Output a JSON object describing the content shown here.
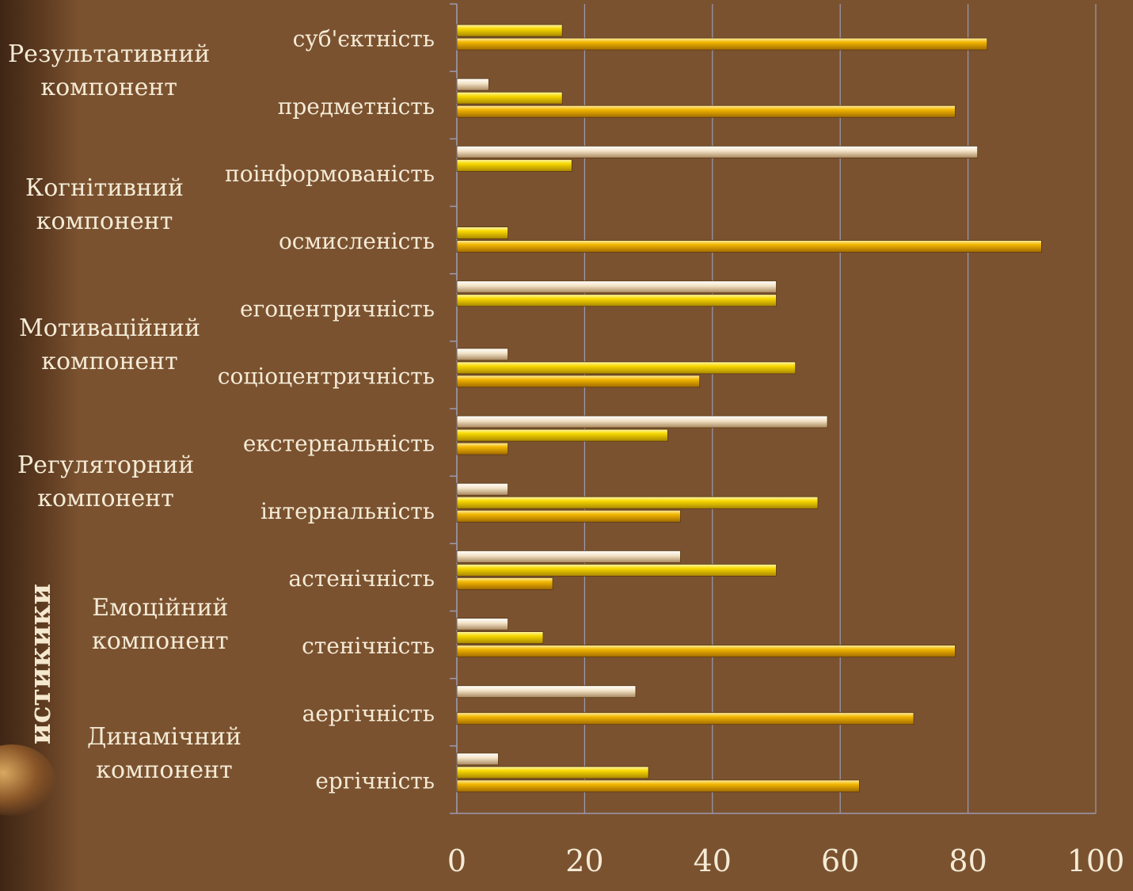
{
  "side_title": "истикики",
  "groups": [
    {
      "line1": "Результативний",
      "line2": "компонент"
    },
    {
      "line1": "Когнітивний",
      "line2": "компонент"
    },
    {
      "line1": "Мотиваційний",
      "line2": "компонент"
    },
    {
      "line1": "Регуляторний",
      "line2": "компонент"
    },
    {
      "line1": "Емоційний",
      "line2": "компонент"
    },
    {
      "line1": "Динамічний",
      "line2": "компонент"
    }
  ],
  "chart_data": {
    "type": "bar",
    "orientation": "horizontal",
    "categories": [
      "ергічність",
      "аергічність",
      "стенічність",
      "астенічність",
      "інтернальність",
      "екстернальність",
      "соціоцентричність",
      "егоцентричність",
      "осмисленість",
      "поінформованість",
      "предметність",
      "суб'єктність"
    ],
    "series": [
      {
        "color": "#e8a800",
        "values": [
          63,
          71.5,
          78,
          15,
          35,
          8,
          38,
          0,
          91.5,
          0,
          78,
          83
        ]
      },
      {
        "color": "#f2cf00",
        "values": [
          30,
          0,
          13.5,
          50,
          56.5,
          33,
          53,
          50,
          8,
          18,
          16.5,
          16.5
        ]
      },
      {
        "color": "#f3e2c4",
        "values": [
          6.5,
          28,
          8,
          35,
          8,
          58,
          8,
          50,
          0,
          81.5,
          5,
          0
        ]
      }
    ],
    "xlim": [
      0,
      100
    ],
    "xticks": [
      "0",
      "20",
      "40",
      "60",
      "80",
      "100"
    ],
    "grid": true,
    "legend": "none"
  }
}
